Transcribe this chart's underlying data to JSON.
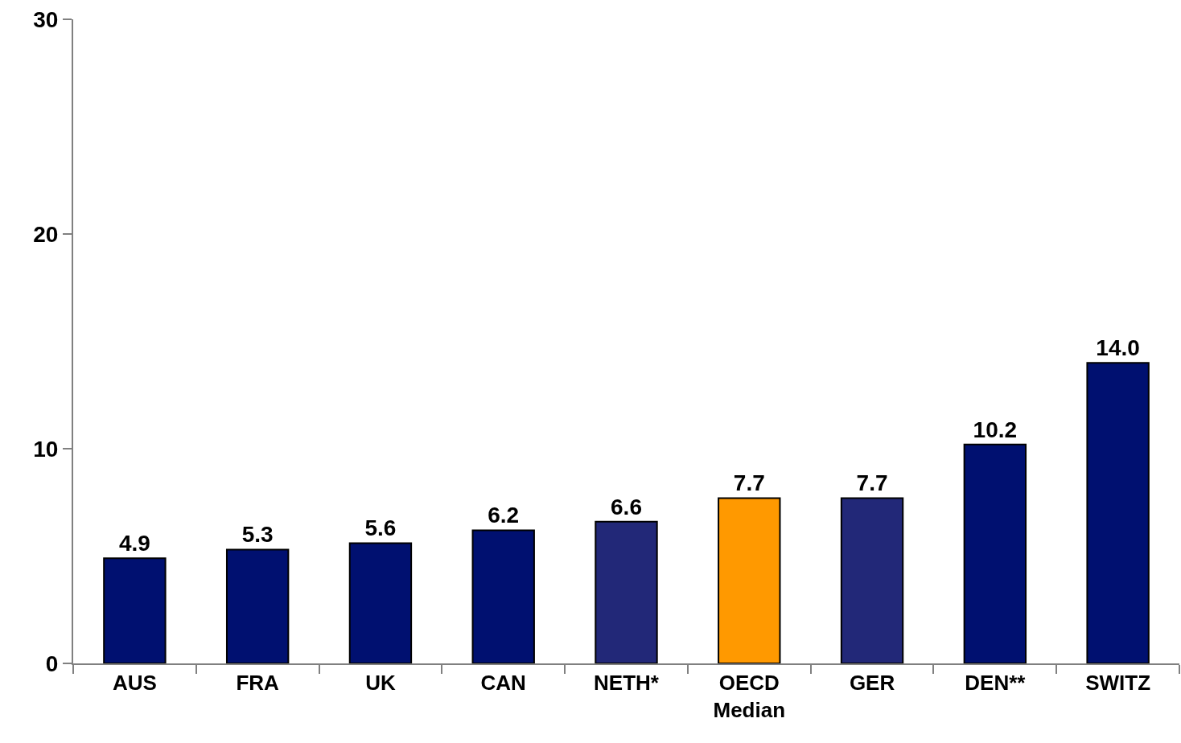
{
  "chart_data": {
    "type": "bar",
    "categories": [
      "AUS",
      "FRA",
      "UK",
      "CAN",
      "NETH*",
      "OECD\nMedian",
      "GER",
      "DEN**",
      "SWITZ"
    ],
    "values": [
      4.9,
      5.3,
      5.6,
      6.2,
      6.6,
      7.7,
      7.7,
      10.2,
      14.0
    ],
    "value_labels": [
      "4.9",
      "5.3",
      "5.6",
      "6.2",
      "6.6",
      "7.7",
      "7.7",
      "10.2",
      "14.0"
    ],
    "colors": [
      "#001070",
      "#001070",
      "#001070",
      "#001070",
      "#222878",
      "#ff9900",
      "#222878",
      "#001070",
      "#001070"
    ],
    "ylim": [
      0,
      30
    ],
    "yticks": [
      0,
      10,
      20,
      30
    ],
    "grid": false
  }
}
